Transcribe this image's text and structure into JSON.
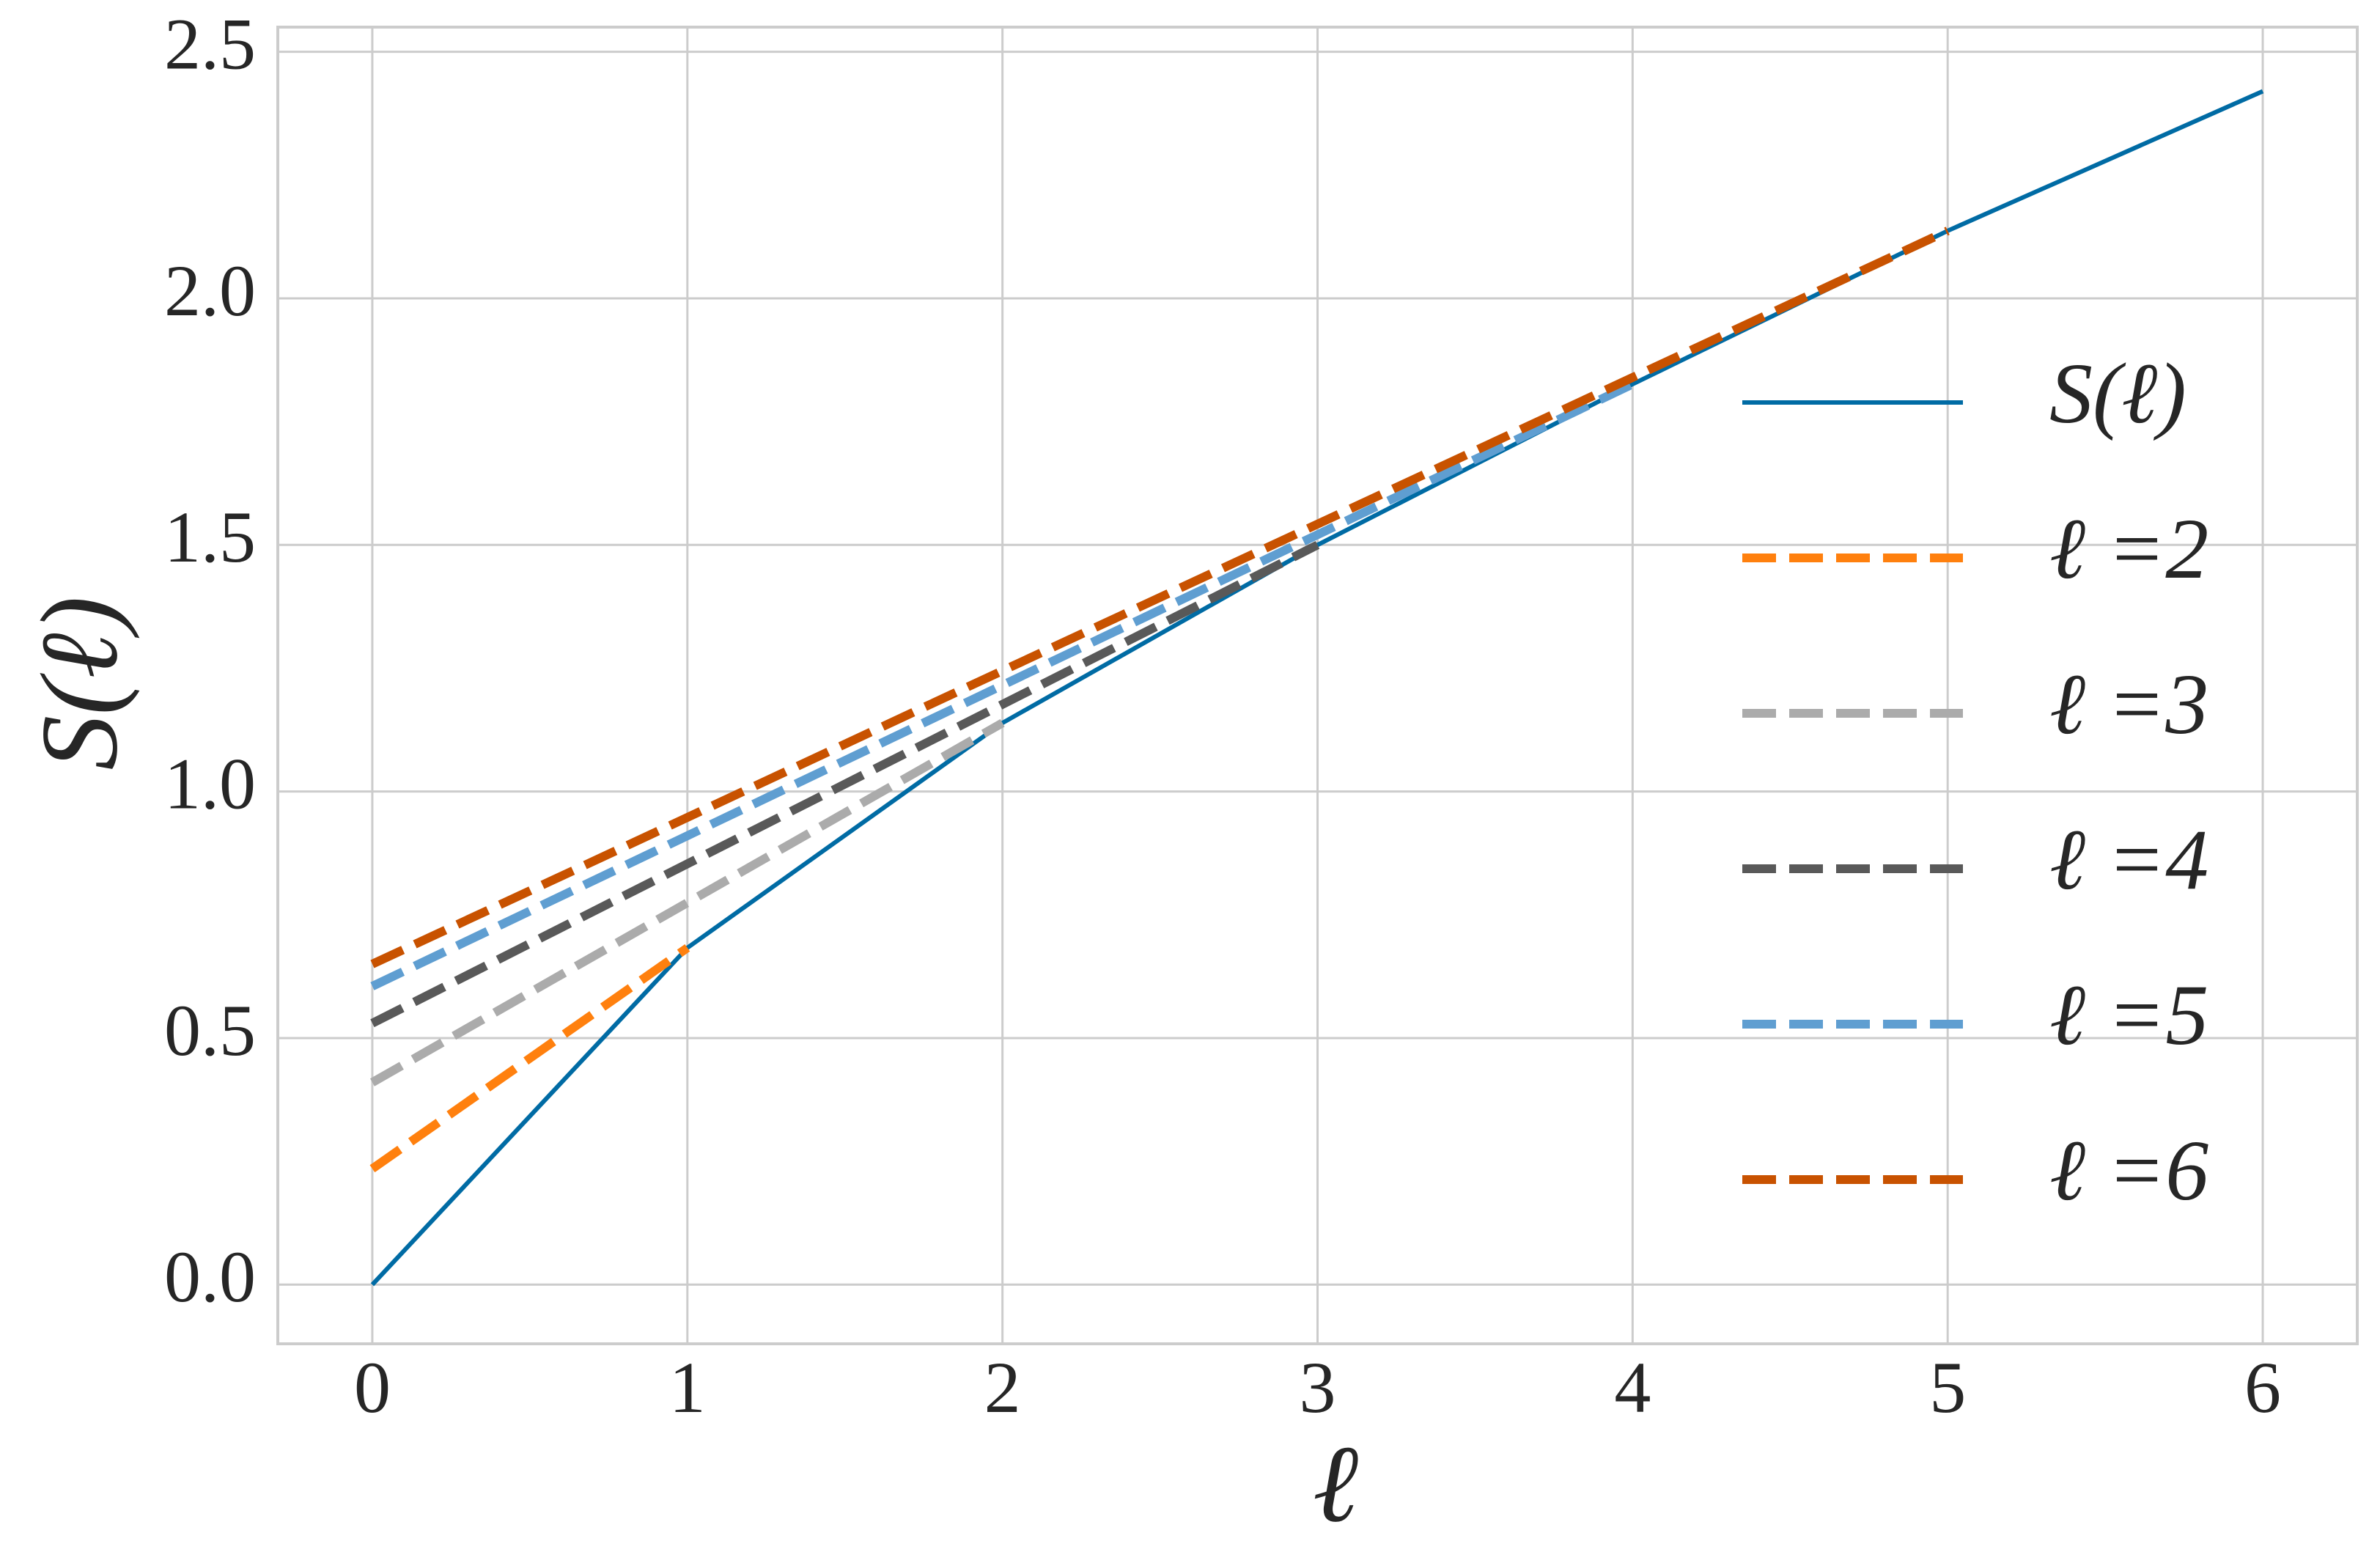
{
  "chart_data": {
    "type": "line",
    "xlabel": "ℓ",
    "ylabel": "S(ℓ)",
    "xlim": [
      -0.3,
      6.3
    ],
    "ylim": [
      -0.12,
      2.55
    ],
    "xticks": [
      0,
      1,
      2,
      3,
      4,
      5,
      6
    ],
    "yticks": [
      {
        "value": 0,
        "label": "0.0"
      },
      0.5,
      {
        "value": 1,
        "label": "1.0"
      },
      1.5,
      {
        "value": 2,
        "label": "2.0"
      },
      2.5
    ],
    "grid": true,
    "legend": "right",
    "series": [
      {
        "name": "S(ℓ)",
        "color": "#006ba4",
        "dashed": false,
        "x": [
          0,
          1,
          2,
          3,
          4,
          5,
          6
        ],
        "values": [
          0,
          0.683,
          1.139,
          1.5,
          1.826,
          2.137,
          2.42
        ]
      },
      {
        "name": "ℓ =2",
        "color": "#ff800e",
        "dashed": true,
        "x": [
          0,
          1
        ],
        "values": [
          0.235,
          0.683
        ]
      },
      {
        "name": "ℓ =3",
        "color": "#ababab",
        "dashed": true,
        "x": [
          0,
          2
        ],
        "values": [
          0.41,
          1.139
        ]
      },
      {
        "name": "ℓ =4",
        "color": "#595959",
        "dashed": true,
        "x": [
          0,
          3
        ],
        "values": [
          0.53,
          1.5
        ]
      },
      {
        "name": "ℓ =5",
        "color": "#5f9ed1",
        "dashed": true,
        "x": [
          0,
          4
        ],
        "values": [
          0.605,
          1.826
        ]
      },
      {
        "name": "ℓ =6",
        "color": "#c85200",
        "dashed": true,
        "x": [
          0,
          5
        ],
        "values": [
          0.65,
          2.137
        ]
      }
    ]
  }
}
